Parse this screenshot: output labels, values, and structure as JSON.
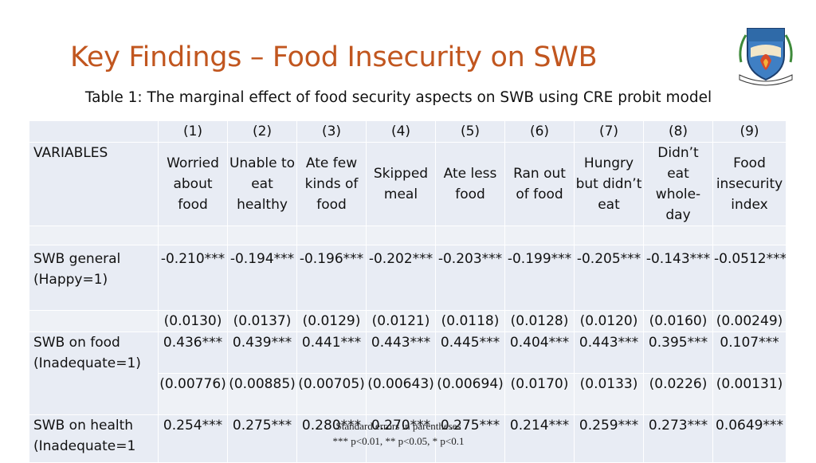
{
  "title": "Key Findings – Food Insecurity on SWB",
  "caption": "Table 1:  The marginal effect of food security aspects on SWB using CRE probit model",
  "logo_text": "HEKIMA NI UHURU",
  "table": {
    "numbers": [
      "(1)",
      "(2)",
      "(3)",
      "(4)",
      "(5)",
      "(6)",
      "(7)",
      "(8)",
      "(9)"
    ],
    "variables_label": "VARIABLES",
    "headers": [
      "Worried about food",
      "Unable to eat healthy",
      "Ate few kinds of food",
      "Skipped meal",
      "Ate less food",
      "Ran out of food",
      "Hungry but didn’t eat",
      "Didn’t eat whole-day",
      "Food insecurity index"
    ],
    "rows": [
      {
        "label": "SWB general (Happy=1)",
        "coef": [
          "-0.210***",
          "-0.194***",
          "-0.196***",
          "-0.202***",
          "-0.203***",
          "-0.199***",
          "-0.205***",
          "-0.143***",
          "-0.0512***"
        ],
        "se": [
          "(0.0130)",
          "(0.0137)",
          "(0.0129)",
          "(0.0121)",
          "(0.0118)",
          "(0.0128)",
          "(0.0120)",
          "(0.0160)",
          "(0.00249)"
        ]
      },
      {
        "label": " SWB on food (Inadequate=1)",
        "coef": [
          "0.436***",
          "0.439***",
          "0.441***",
          "0.443***",
          "0.445***",
          "0.404***",
          "0.443***",
          "0.395***",
          "0.107***"
        ],
        "se": [
          "(0.00776)",
          "(0.00885)",
          "(0.00705)",
          "(0.00643)",
          "(0.00694)",
          "(0.0170)",
          "(0.0133)",
          "(0.0226)",
          "(0.00131)"
        ]
      },
      {
        "label": "SWB on health (Inadequate=1",
        "coef": [
          "0.254***",
          "0.275***",
          "0.280***",
          "0.270***",
          "0.275***",
          "0.214***",
          "0.259***",
          "0.273***",
          "0.0649***"
        ]
      }
    ]
  },
  "footnote": {
    "line1": "Standard errors in parentheses",
    "line2": "*** p<0.01, ** p<0.05, * p<0.1"
  }
}
